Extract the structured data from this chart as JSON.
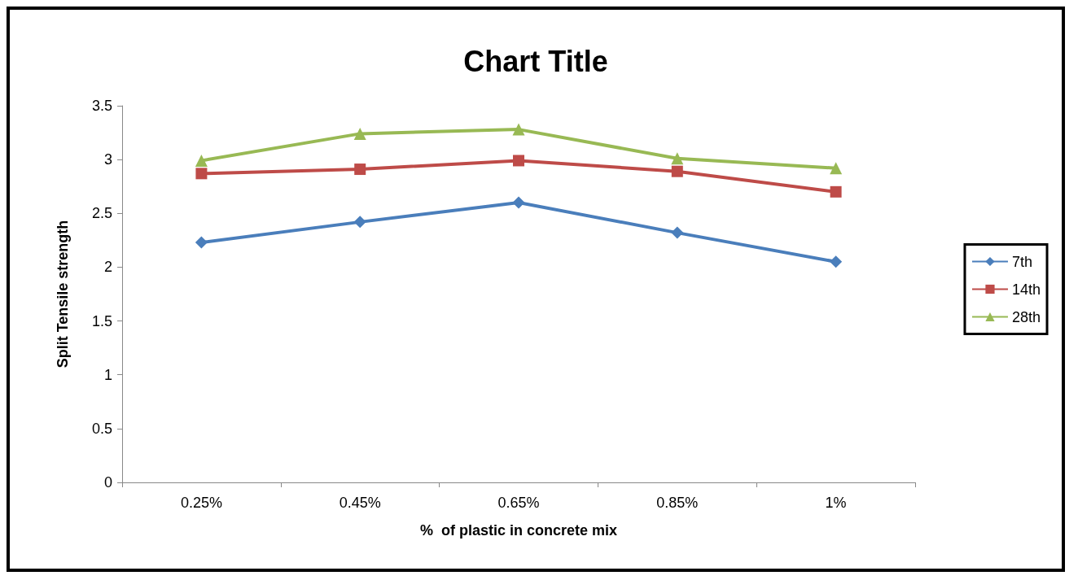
{
  "chart_data": {
    "type": "line",
    "title": "Chart Title",
    "xlabel": "%  of plastic in concrete mix",
    "ylabel": "Split Tensile strength",
    "categories": [
      "0.25%",
      "0.45%",
      "0.65%",
      "0.85%",
      "1%"
    ],
    "series": [
      {
        "name": "7th",
        "color": "#4a7ebb",
        "marker": "diamond",
        "values": [
          2.23,
          2.42,
          2.6,
          2.32,
          2.05
        ]
      },
      {
        "name": "14th",
        "color": "#be4b48",
        "marker": "square",
        "values": [
          2.87,
          2.91,
          2.99,
          2.89,
          2.7
        ]
      },
      {
        "name": "28th",
        "color": "#98b954",
        "marker": "triangle",
        "values": [
          2.99,
          3.24,
          3.28,
          3.01,
          2.92
        ]
      }
    ],
    "ylim": [
      0,
      3.5
    ],
    "yticks": [
      0,
      0.5,
      1,
      1.5,
      2,
      2.5,
      3,
      3.5
    ],
    "grid": false,
    "legend": "right",
    "line_style": "solid"
  }
}
